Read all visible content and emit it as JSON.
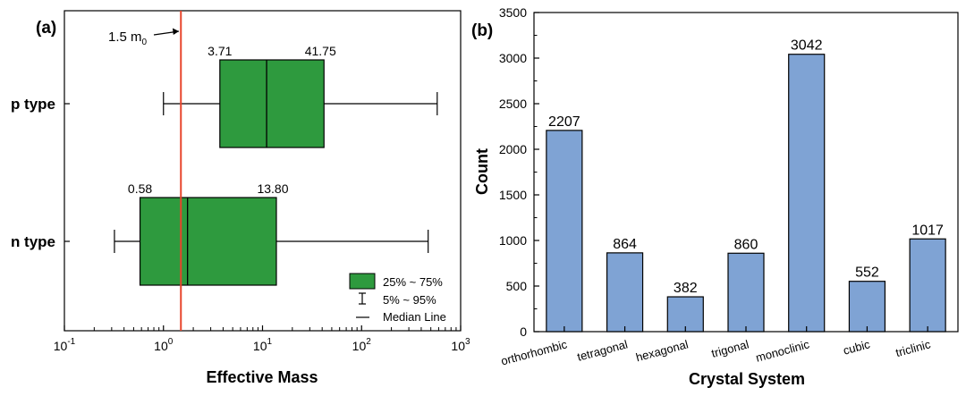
{
  "chart_data": [
    {
      "type": "boxplot",
      "panel_label": "(a)",
      "xlabel": "Effective Mass",
      "xscale": "log",
      "xlim": [
        0.1,
        1000
      ],
      "x_ticks": [
        {
          "value": 0.1,
          "base": "10",
          "exp": "-1"
        },
        {
          "value": 1,
          "base": "10",
          "exp": "0"
        },
        {
          "value": 10,
          "base": "10",
          "exp": "1"
        },
        {
          "value": 100,
          "base": "10",
          "exp": "2"
        },
        {
          "value": 1000,
          "base": "10",
          "exp": "3"
        }
      ],
      "categories": [
        "p type",
        "n type"
      ],
      "boxes": [
        {
          "name": "p type",
          "whisker_low": 1.0,
          "q1": 3.71,
          "median": 11.0,
          "q3": 41.75,
          "whisker_high": 580,
          "q1_label": "3.71",
          "q3_label": "41.75"
        },
        {
          "name": "n type",
          "whisker_low": 0.32,
          "q1": 0.58,
          "median": 1.75,
          "q3": 13.8,
          "whisker_high": 470,
          "q1_label": "0.58",
          "q3_label": "13.80"
        }
      ],
      "reference_line": {
        "value": 1.5,
        "label_main": "1.5 m",
        "label_sub": "0",
        "color": "#e8452c"
      },
      "box_color": "#2e9a3e",
      "legend": {
        "placement": "bottom-right",
        "items": [
          {
            "kind": "box",
            "label": "25% ~ 75%"
          },
          {
            "kind": "whisker",
            "label": "5% ~ 95%"
          },
          {
            "kind": "line",
            "label": "Median Line"
          }
        ]
      }
    },
    {
      "type": "bar",
      "panel_label": "(b)",
      "xlabel": "Crystal System",
      "ylabel": "Count",
      "categories": [
        "orthorhombic",
        "tetragonal",
        "hexagonal",
        "trigonal",
        "monoclinic",
        "cubic",
        "triclinic"
      ],
      "values": [
        2207,
        864,
        382,
        860,
        3042,
        552,
        1017
      ],
      "value_labels": [
        "2207",
        "864",
        "382",
        "860",
        "3042",
        "552",
        "1017"
      ],
      "ylim": [
        0,
        3500
      ],
      "y_ticks": [
        0,
        500,
        1000,
        1500,
        2000,
        2500,
        3000,
        3500
      ],
      "bar_color": "#7fa3d4"
    }
  ]
}
